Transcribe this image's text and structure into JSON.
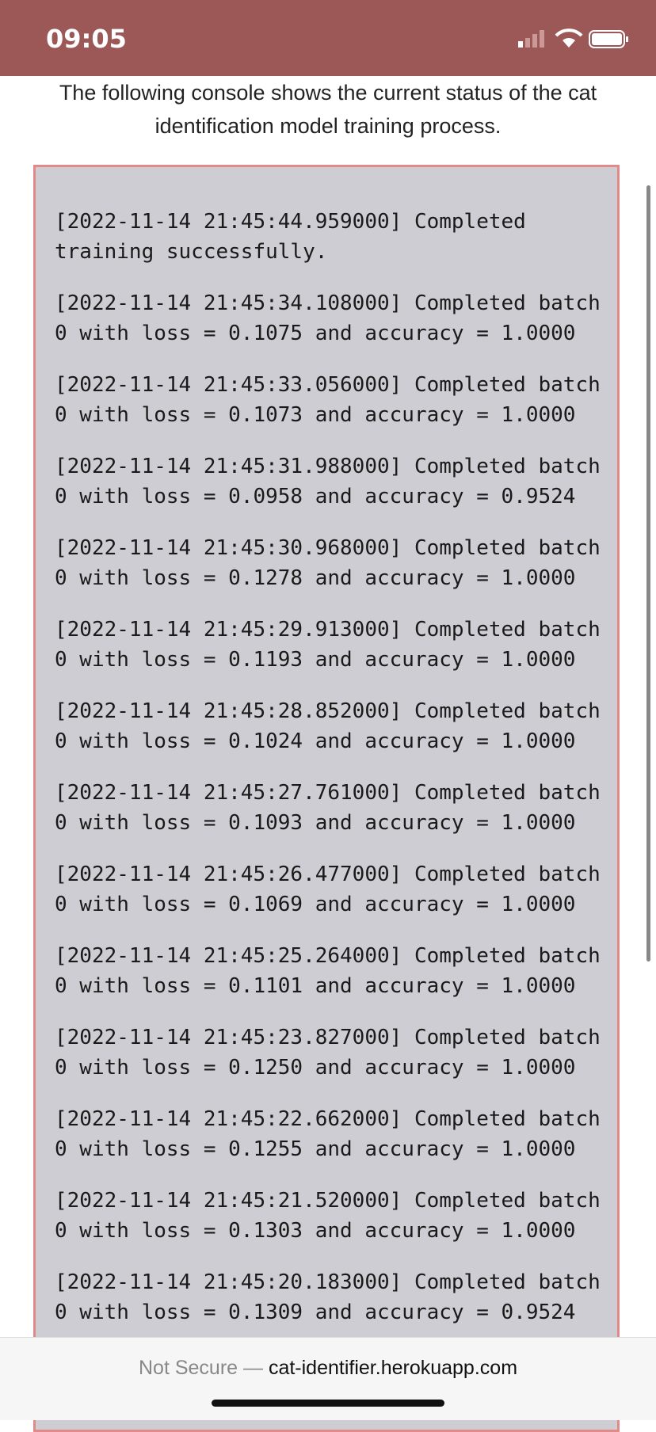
{
  "status_bar": {
    "time": "09:05"
  },
  "description": "The following console shows the current status of the cat identification model training process.",
  "console": {
    "lines": [
      "[2022-11-14 21:45:44.959000] Completed training successfully.",
      "[2022-11-14 21:45:34.108000] Completed batch 0 with loss = 0.1075 and accuracy = 1.0000",
      "[2022-11-14 21:45:33.056000] Completed batch 0 with loss = 0.1073 and accuracy = 1.0000",
      "[2022-11-14 21:45:31.988000] Completed batch 0 with loss = 0.0958 and accuracy = 0.9524",
      "[2022-11-14 21:45:30.968000] Completed batch 0 with loss = 0.1278 and accuracy = 1.0000",
      "[2022-11-14 21:45:29.913000] Completed batch 0 with loss = 0.1193 and accuracy = 1.0000",
      "[2022-11-14 21:45:28.852000] Completed batch 0 with loss = 0.1024 and accuracy = 1.0000",
      "[2022-11-14 21:45:27.761000] Completed batch 0 with loss = 0.1093 and accuracy = 1.0000",
      "[2022-11-14 21:45:26.477000] Completed batch 0 with loss = 0.1069 and accuracy = 1.0000",
      "[2022-11-14 21:45:25.264000] Completed batch 0 with loss = 0.1101 and accuracy = 1.0000",
      "[2022-11-14 21:45:23.827000] Completed batch 0 with loss = 0.1250 and accuracy = 1.0000",
      "[2022-11-14 21:45:22.662000] Completed batch 0 with loss = 0.1255 and accuracy = 1.0000",
      "[2022-11-14 21:45:21.520000] Completed batch 0 with loss = 0.1303 and accuracy = 1.0000",
      "[2022-11-14 21:45:20.183000] Completed batch 0 with loss = 0.1309 and accuracy = 0.9524"
    ]
  },
  "url_bar": {
    "prefix": "Not Secure —",
    "domain": "cat-identifier.herokuapp.com"
  }
}
